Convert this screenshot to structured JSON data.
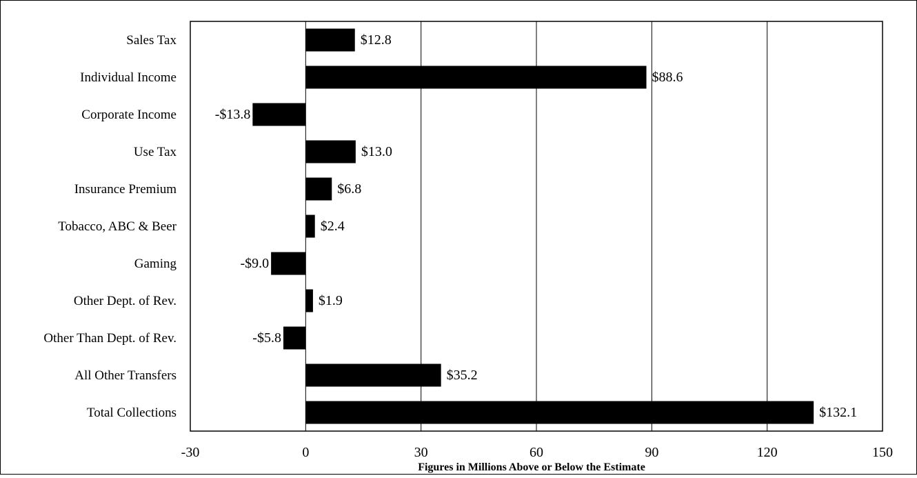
{
  "chart_data": {
    "type": "bar",
    "orientation": "horizontal",
    "categories": [
      "Sales Tax",
      "Individual Income",
      "Corporate Income",
      "Use Tax",
      "Insurance Premium",
      "Tobacco, ABC & Beer",
      "Gaming",
      "Other Dept. of Rev.",
      "Other Than Dept. of Rev.",
      "All Other Transfers",
      "Total Collections"
    ],
    "values": [
      12.8,
      88.6,
      -13.8,
      13.0,
      6.8,
      2.4,
      -9.0,
      1.9,
      -5.8,
      35.2,
      132.1
    ],
    "value_labels": [
      "$12.8",
      "$88.6",
      "-$13.8",
      "$13.0",
      "$6.8",
      "$2.4",
      "-$9.0",
      "$1.9",
      "-$5.8",
      "$35.2",
      "$132.1"
    ],
    "xlabel": "Figures in Millions Above or Below the Estimate",
    "xlim": [
      -30,
      150
    ],
    "xticks": [
      -30,
      0,
      30,
      60,
      90,
      120,
      150
    ],
    "xtick_labels": [
      "-30",
      "0",
      "30",
      "60",
      "90",
      "120",
      "150"
    ],
    "grid": "vertical",
    "legend": "none",
    "bar_color": "#000000"
  }
}
